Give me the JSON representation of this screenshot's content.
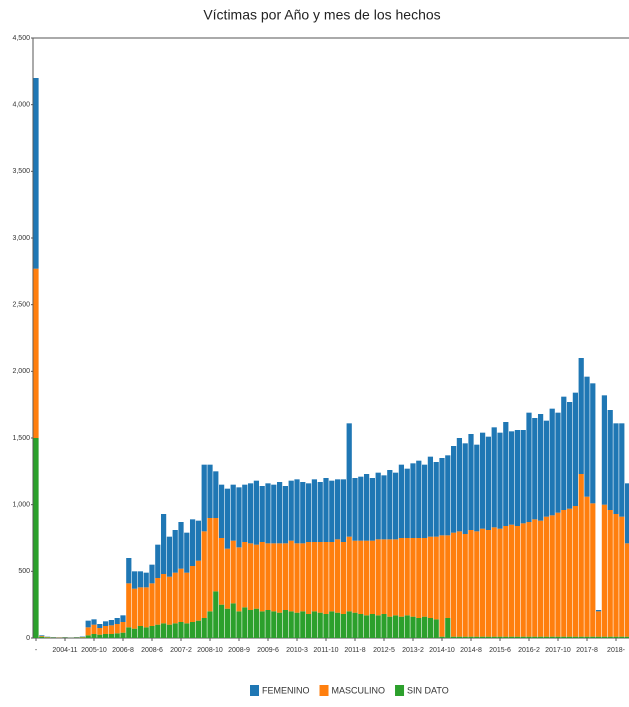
{
  "chart_data": {
    "type": "stacked_bar",
    "title": "Víctimas por Año y mes de los hechos",
    "categories": [
      "-",
      null,
      null,
      null,
      null,
      "2004-11",
      null,
      null,
      null,
      null,
      "2005-10",
      null,
      null,
      null,
      null,
      "2006-8",
      null,
      null,
      null,
      null,
      "2008-6",
      null,
      null,
      null,
      null,
      "2007-2",
      null,
      null,
      null,
      null,
      "2008-10",
      null,
      null,
      null,
      null,
      "2008-9",
      null,
      null,
      null,
      null,
      "2009-6",
      null,
      null,
      null,
      null,
      "2010-3",
      null,
      null,
      null,
      null,
      "2011-10",
      null,
      null,
      null,
      null,
      "2011-8",
      null,
      null,
      null,
      null,
      "2012-5",
      null,
      null,
      null,
      null,
      "2013-2",
      null,
      null,
      null,
      null,
      "2014-10",
      null,
      null,
      null,
      null,
      "2014-8",
      null,
      null,
      null,
      null,
      "2015-6",
      null,
      null,
      null,
      null,
      "2016-2",
      null,
      null,
      null,
      null,
      "2017-10",
      null,
      null,
      null,
      null,
      "2017-8",
      null,
      null,
      null,
      null,
      "2018-",
      null,
      null
    ],
    "series": [
      {
        "name": "SIN DATO",
        "color": "#2ca02c",
        "values": [
          1500,
          10,
          5,
          3,
          2,
          3,
          2,
          3,
          5,
          20,
          30,
          25,
          30,
          30,
          35,
          40,
          80,
          70,
          90,
          80,
          90,
          100,
          110,
          100,
          110,
          120,
          110,
          120,
          130,
          150,
          200,
          350,
          250,
          220,
          260,
          200,
          230,
          210,
          220,
          200,
          210,
          200,
          190,
          210,
          200,
          190,
          200,
          180,
          200,
          190,
          180,
          200,
          190,
          180,
          200,
          190,
          180,
          170,
          180,
          170,
          180,
          160,
          170,
          160,
          170,
          160,
          150,
          160,
          150,
          140,
          10,
          150,
          10,
          10,
          10,
          10,
          10,
          10,
          10,
          10,
          10,
          10,
          10,
          10,
          10,
          10,
          10,
          10,
          10,
          10,
          10,
          10,
          10,
          10,
          10,
          10,
          10,
          10,
          10,
          10,
          10,
          10,
          10
        ]
      },
      {
        "name": "MASCULINO",
        "color": "#ff7f0e",
        "values": [
          1270,
          5,
          3,
          2,
          2,
          2,
          1,
          2,
          3,
          60,
          70,
          50,
          60,
          65,
          70,
          80,
          330,
          300,
          290,
          300,
          320,
          350,
          370,
          360,
          380,
          400,
          380,
          420,
          450,
          650,
          700,
          550,
          500,
          450,
          470,
          480,
          490,
          500,
          480,
          520,
          500,
          510,
          520,
          500,
          530,
          520,
          510,
          540,
          520,
          530,
          540,
          520,
          550,
          540,
          560,
          540,
          550,
          560,
          550,
          570,
          560,
          580,
          570,
          590,
          580,
          590,
          600,
          590,
          610,
          620,
          760,
          620,
          780,
          790,
          770,
          800,
          790,
          810,
          800,
          820,
          810,
          830,
          840,
          830,
          850,
          860,
          880,
          870,
          900,
          910,
          930,
          950,
          960,
          980,
          1220,
          1050,
          1000,
          190,
          990,
          950,
          920,
          900,
          700
        ]
      },
      {
        "name": "FEMENINO",
        "color": "#1f77b4",
        "values": [
          1430,
          5,
          2,
          2,
          1,
          2,
          1,
          2,
          3,
          50,
          40,
          30,
          35,
          40,
          45,
          50,
          190,
          130,
          120,
          110,
          140,
          250,
          450,
          300,
          320,
          350,
          300,
          350,
          300,
          500,
          400,
          350,
          400,
          450,
          420,
          450,
          430,
          450,
          480,
          420,
          450,
          440,
          460,
          430,
          450,
          480,
          460,
          440,
          470,
          450,
          480,
          460,
          450,
          470,
          850,
          470,
          480,
          500,
          470,
          500,
          480,
          520,
          500,
          550,
          520,
          560,
          580,
          550,
          600,
          560,
          580,
          600,
          650,
          700,
          680,
          720,
          650,
          720,
          700,
          750,
          720,
          780,
          700,
          720,
          700,
          820,
          760,
          800,
          720,
          800,
          750,
          850,
          800,
          850,
          870,
          900,
          900,
          10,
          820,
          750,
          680,
          700,
          450
        ]
      }
    ],
    "ylim": [
      0,
      4500
    ],
    "yticks": [
      0,
      500,
      {
        "value": 1000,
        "label": "1,000"
      },
      {
        "value": 1500,
        "label": "1,500"
      },
      {
        "value": 2000,
        "label": "2,000"
      },
      {
        "value": 2500,
        "label": "2,500"
      },
      {
        "value": 3000,
        "label": "3,000"
      },
      {
        "value": 3500,
        "label": "3,500"
      },
      {
        "value": 4000,
        "label": "4,000"
      },
      {
        "value": 4500,
        "label": "4,500"
      }
    ],
    "legend": "bottom"
  }
}
